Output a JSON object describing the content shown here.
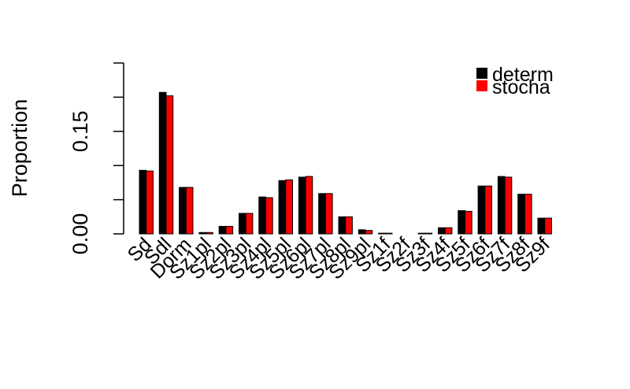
{
  "chart_data": {
    "type": "bar",
    "ylabel": "Proportion",
    "ylim": [
      0,
      0.25
    ],
    "yticks": [
      {
        "value": 0.0,
        "label": "0.00"
      },
      {
        "value": 0.05,
        "label": ""
      },
      {
        "value": 0.1,
        "label": ""
      },
      {
        "value": 0.15,
        "label": "0.15"
      },
      {
        "value": 0.2,
        "label": ""
      },
      {
        "value": 0.25,
        "label": ""
      }
    ],
    "categories": [
      "Sd",
      "Sdl",
      "Dorm",
      "Sz1pl",
      "Sz2pl",
      "Sz3pl",
      "Sz4pl",
      "Sz5pl",
      "Sz6pl",
      "Sz7pl",
      "Sz8pl",
      "Sz9pl",
      "Sz1f",
      "Sz2f",
      "Sz3f",
      "Sz4f",
      "Sz5f",
      "Sz6f",
      "Sz7f",
      "Sz8f",
      "Sz9f"
    ],
    "series": [
      {
        "name": "determ",
        "color": "#000000",
        "values": [
          0.093,
          0.207,
          0.068,
          0.002,
          0.011,
          0.03,
          0.054,
          0.078,
          0.083,
          0.059,
          0.025,
          0.006,
          0.001,
          0.0,
          0.001,
          0.009,
          0.034,
          0.07,
          0.084,
          0.058,
          0.023
        ]
      },
      {
        "name": "stocha",
        "color": "#ff0000",
        "values": [
          0.092,
          0.202,
          0.068,
          0.002,
          0.011,
          0.03,
          0.053,
          0.079,
          0.084,
          0.059,
          0.025,
          0.005,
          0.001,
          0.0,
          0.001,
          0.009,
          0.033,
          0.07,
          0.083,
          0.058,
          0.023
        ]
      }
    ],
    "legend": {
      "position": "top-right",
      "entries": [
        "determ",
        "stocha"
      ]
    },
    "grid": false
  }
}
